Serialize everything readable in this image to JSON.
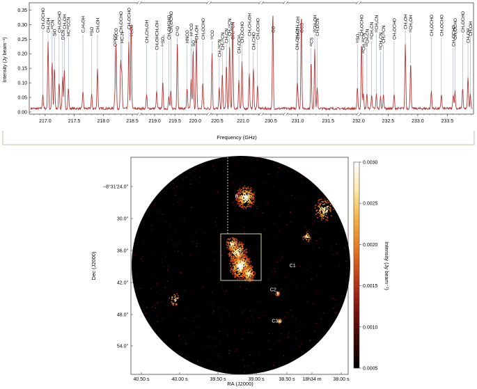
{
  "spectrum": {
    "ylabel": "Intensity (Jy beam⁻¹)",
    "xlabel": "Frequency (GHz)",
    "yticks": [
      "0.00",
      "0.05",
      "0.10",
      "0.15",
      "0.20",
      "0.25",
      "0.30",
      "0.35"
    ],
    "ylim": [
      0,
      0.37
    ],
    "segments": [
      {
        "range": [
          216.75,
          218.62
        ],
        "ticks": [
          "217.0",
          "217.5",
          "218.0",
          "218.5"
        ],
        "ticks_v": [
          217.0,
          217.5,
          218.0,
          218.5
        ]
      },
      {
        "range": [
          218.62,
          220.34
        ],
        "ticks": [
          "219.0",
          "219.5",
          "220.0"
        ],
        "ticks_v": [
          219.0,
          219.5,
          220.0
        ]
      },
      {
        "range": [
          220.34,
          221.35
        ],
        "ticks": [
          "220.5",
          "221.0"
        ],
        "ticks_v": [
          220.5,
          221.0
        ]
      },
      {
        "range": [
          230.3,
          230.8
        ],
        "ticks": [
          "230.5"
        ],
        "ticks_v": [
          230.5
        ]
      },
      {
        "range": [
          230.8,
          232.0
        ],
        "ticks": [
          "231.0",
          "231.5"
        ],
        "ticks_v": [
          231.0,
          231.5
        ]
      },
      {
        "range": [
          232.0,
          233.92
        ],
        "ticks": [
          "232.0",
          "232.5",
          "233.0",
          "233.5"
        ],
        "ticks_v": [
          232.0,
          232.5,
          233.0,
          233.5
        ]
      }
    ],
    "lines": [
      {
        "x": 216.96,
        "y": 0.05,
        "label": "CH₃OCHO",
        "row": 0
      },
      {
        "x": 217.05,
        "y": 0.23,
        "label": "CH₃OH",
        "row": 1
      },
      {
        "x": 217.12,
        "y": 0.16,
        "label": "¹³CN",
        "row": 0
      },
      {
        "x": 217.16,
        "y": 0.14,
        "label": "SiO",
        "row": 2
      },
      {
        "x": 217.24,
        "y": 0.09,
        "label": "CH₃OCHO",
        "row": 1
      },
      {
        "x": 217.3,
        "y": 0.11,
        "label": "DCN",
        "row": 3
      },
      {
        "x": 217.33,
        "y": 0.13,
        "label": "CH₃OH",
        "row": 0
      },
      {
        "x": 217.4,
        "y": 0.07,
        "label": "HC¹³CCN",
        "row": 2
      },
      {
        "x": 217.65,
        "y": 0.06,
        "label": "C₂H₅OH",
        "row": 1
      },
      {
        "x": 217.8,
        "y": 0.05,
        "label": "³³SO",
        "row": 2
      },
      {
        "x": 217.9,
        "y": 0.14,
        "label": "CH₃OH",
        "row": 1
      },
      {
        "x": 218.2,
        "y": 0.05,
        "label": "O¹³CS",
        "row": 5
      },
      {
        "x": 218.22,
        "y": 0.22,
        "label": "H₂CO",
        "row": 3
      },
      {
        "x": 218.3,
        "y": 0.16,
        "label": "CH₃OCHO",
        "row": 1
      },
      {
        "x": 218.32,
        "y": 0.12,
        "label": "HC₃N",
        "row": 4
      },
      {
        "x": 218.44,
        "y": 0.23,
        "label": "CH₃OCHO",
        "row": 0
      },
      {
        "x": 218.48,
        "y": 0.3,
        "label": "H₂CO",
        "row": 2
      },
      {
        "x": 218.8,
        "y": 0.05,
        "label": "CH₃CH₂OH",
        "row": 4
      },
      {
        "x": 219.05,
        "y": 0.06,
        "label": "CH₂OHCH₂OH",
        "row": 6
      },
      {
        "x": 219.2,
        "y": 0.09,
        "label": "³⁴SO₂",
        "row": 5
      },
      {
        "x": 219.35,
        "y": 0.04,
        "label": "CH₂OHCHO",
        "row": 3
      },
      {
        "x": 219.4,
        "y": 0.06,
        "label": "CH₃OCHO",
        "row": 1
      },
      {
        "x": 219.56,
        "y": 0.23,
        "label": "C¹⁸O",
        "row": 2
      },
      {
        "x": 219.8,
        "y": 0.07,
        "label": "HNCO",
        "row": 4
      },
      {
        "x": 219.95,
        "y": 0.2,
        "label": "SO",
        "row": 5
      },
      {
        "x": 219.9,
        "y": 0.1,
        "label": "H¹³CO",
        "row": 2
      },
      {
        "x": 220.03,
        "y": 0.24,
        "label": "¹³CH₃OH",
        "row": 4
      },
      {
        "x": 220.19,
        "y": 0.09,
        "label": "CH₃OCHO",
        "row": 3
      },
      {
        "x": 220.4,
        "y": 0.19,
        "label": "¹³CO",
        "row": 3
      },
      {
        "x": 220.54,
        "y": 0.07,
        "label": "CH₃¹³CN",
        "row": 8
      },
      {
        "x": 220.6,
        "y": 0.12,
        "label": "CH₃¹³CN",
        "row": 6
      },
      {
        "x": 220.68,
        "y": 0.15,
        "label": "CH₃CN",
        "row": 4
      },
      {
        "x": 220.74,
        "y": 0.22,
        "label": "CH₃¹³CN",
        "row": 2
      },
      {
        "x": 220.8,
        "y": 0.3,
        "label": "CH₃¹³CN",
        "row": 3
      },
      {
        "x": 220.92,
        "y": 0.1,
        "label": "CH₃OCH₃",
        "row": 7
      },
      {
        "x": 220.98,
        "y": 0.16,
        "label": "CH₃OCHO",
        "row": 4
      },
      {
        "x": 221.2,
        "y": 0.14,
        "label": "CH₃CHO",
        "row": 6
      },
      {
        "x": 221.12,
        "y": 0.12,
        "label": "CH₂CH₂OH",
        "row": 2
      },
      {
        "x": 221.28,
        "y": 0.08,
        "label": "CH₃OCHO",
        "row": 3
      },
      {
        "x": 230.54,
        "y": 0.33,
        "label": "CO",
        "row": 1
      },
      {
        "x": 230.99,
        "y": 0.05,
        "label": "CH₃CH₂OH",
        "row": 6
      },
      {
        "x": 231.06,
        "y": 0.33,
        "label": "OCS",
        "row": 1
      },
      {
        "x": 231.0,
        "y": 0.06,
        "label": "CH₃CH₂OH",
        "row": 3
      },
      {
        "x": 231.22,
        "y": 0.16,
        "label": "¹³CS",
        "row": 5
      },
      {
        "x": 231.28,
        "y": 0.2,
        "label": "¹³CH₃OH",
        "row": 1
      },
      {
        "x": 231.32,
        "y": 0.07,
        "label": "CH₂DCN",
        "row": 2
      },
      {
        "x": 231.98,
        "y": 0.07,
        "label": "³³SO₂",
        "row": 4
      },
      {
        "x": 232.05,
        "y": 0.23,
        "label": "CH₃OCHO",
        "row": 2
      },
      {
        "x": 232.08,
        "y": 0.05,
        "label": "¹³CH₃¹³CN",
        "row": 7
      },
      {
        "x": 232.14,
        "y": 0.05,
        "label": "¹³CH₃CN",
        "row": 5
      },
      {
        "x": 232.22,
        "y": 0.05,
        "label": "¹³CH₃CN",
        "row": 3
      },
      {
        "x": 232.3,
        "y": 0.05,
        "label": "¹³CH₃CN",
        "row": 1
      },
      {
        "x": 232.37,
        "y": 0.04,
        "label": "¹³CH₃CN",
        "row": 6
      },
      {
        "x": 232.42,
        "y": 0.05,
        "label": "CH₃¹³CN",
        "row": 4
      },
      {
        "x": 232.6,
        "y": 0.05,
        "label": "CH₃OCHO",
        "row": 3
      },
      {
        "x": 232.79,
        "y": 0.22,
        "label": "CH₃OH",
        "row": 0
      },
      {
        "x": 232.88,
        "y": 0.16,
        "label": "¹³CH₃OH",
        "row": 1
      },
      {
        "x": 233.23,
        "y": 0.06,
        "label": "CH₃OCHO",
        "row": 2
      },
      {
        "x": 233.4,
        "y": 0.05,
        "label": "CH₃OCHO",
        "row": 2
      },
      {
        "x": 233.6,
        "y": 0.05,
        "label": "CH₃OCHO",
        "row": 5
      },
      {
        "x": 233.63,
        "y": 0.06,
        "label": "CH₃OCHO",
        "row": 3
      },
      {
        "x": 233.76,
        "y": 0.07,
        "label": "CH₃OCHO",
        "row": 1
      },
      {
        "x": 233.85,
        "y": 0.11,
        "label": "CH₃OH",
        "row": 4
      },
      {
        "x": 233.89,
        "y": 0.05,
        "label": "CH₃OH",
        "row": 2
      }
    ]
  },
  "image": {
    "xlabel": "RA (J2000)",
    "ylabel": "Dec (J2000)",
    "xticks": [
      "40.50 s",
      "40.00 s",
      "39.50 s",
      "39.00 s",
      "38.50 s",
      "18h34 m",
      "38.00 s"
    ],
    "yticks": [
      "−8°31′24.0″",
      "30.0″",
      "36.0″",
      "42.0″",
      "48.0″",
      "54.0″"
    ],
    "colorbar": {
      "label": "Intensity (Jy beam⁻¹)",
      "ticks": [
        "0.0030",
        "0.0025",
        "0.0020",
        "0.0015",
        "0.0010",
        "0.0005"
      ],
      "ticks_v": [
        0.003,
        0.0025,
        0.002,
        0.0015,
        0.001,
        0.0005
      ],
      "range": [
        0.0005,
        0.003
      ],
      "colors": [
        "#000000",
        "#3a0606",
        "#7c1410",
        "#bb3a18",
        "#e2741f",
        "#f3ad3c",
        "#fce8a2",
        "#ffffff"
      ]
    },
    "sources": [
      {
        "label": "B",
        "x": 0.487,
        "y": 0.188
      },
      {
        "label": "A",
        "x": 0.518,
        "y": 0.497
      },
      {
        "label": "C1",
        "x": 0.744,
        "y": 0.506
      },
      {
        "label": "C2",
        "x": 0.655,
        "y": 0.617
      },
      {
        "label": "C3",
        "x": 0.663,
        "y": 0.762
      }
    ],
    "scalebar": "1″ = 5,880 au"
  }
}
